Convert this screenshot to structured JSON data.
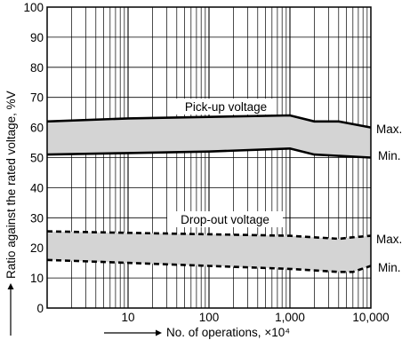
{
  "chart_data": {
    "type": "line",
    "x_scale": "log",
    "xlim": [
      1,
      10000
    ],
    "ylim": [
      0,
      100
    ],
    "grid": true,
    "xlabel": "No. of operations, ×10⁴",
    "ylabel": "Ratio against the rated voltage, %V",
    "x_tick_labels": [
      "10",
      "100",
      "1,000",
      "10,000"
    ],
    "y_tick_labels": [
      "0",
      "10",
      "20",
      "30",
      "40",
      "50",
      "60",
      "70",
      "80",
      "90",
      "100"
    ],
    "annotations": [
      "Pick-up voltage",
      "Drop-out voltage"
    ],
    "series_end_labels": [
      "Max.",
      "Min.",
      "Max.",
      "Min."
    ],
    "bands": [
      {
        "label": "Pick-up voltage",
        "line_style": "solid",
        "upper_label": "Max.",
        "lower_label": "Min.",
        "upper": [
          [
            1,
            62
          ],
          [
            10,
            63
          ],
          [
            100,
            63.5
          ],
          [
            1000,
            64
          ],
          [
            2000,
            62
          ],
          [
            4000,
            62
          ],
          [
            10000,
            60
          ]
        ],
        "lower": [
          [
            1,
            51
          ],
          [
            10,
            51.5
          ],
          [
            100,
            52
          ],
          [
            1000,
            53
          ],
          [
            2000,
            51
          ],
          [
            10000,
            50
          ]
        ]
      },
      {
        "label": "Drop-out voltage",
        "line_style": "dashed",
        "upper_label": "Max.",
        "lower_label": "Min.",
        "upper": [
          [
            1,
            25.5
          ],
          [
            10,
            25
          ],
          [
            100,
            24.5
          ],
          [
            1000,
            24
          ],
          [
            4000,
            23
          ],
          [
            6000,
            23.5
          ],
          [
            10000,
            24
          ]
        ],
        "lower": [
          [
            1,
            16
          ],
          [
            10,
            15
          ],
          [
            100,
            14
          ],
          [
            1000,
            13
          ],
          [
            4000,
            12
          ],
          [
            6000,
            12
          ],
          [
            10000,
            14
          ]
        ]
      }
    ],
    "colors": {
      "band_fill": "#d4d4d4",
      "line": "#000000",
      "grid": "#000000"
    }
  }
}
